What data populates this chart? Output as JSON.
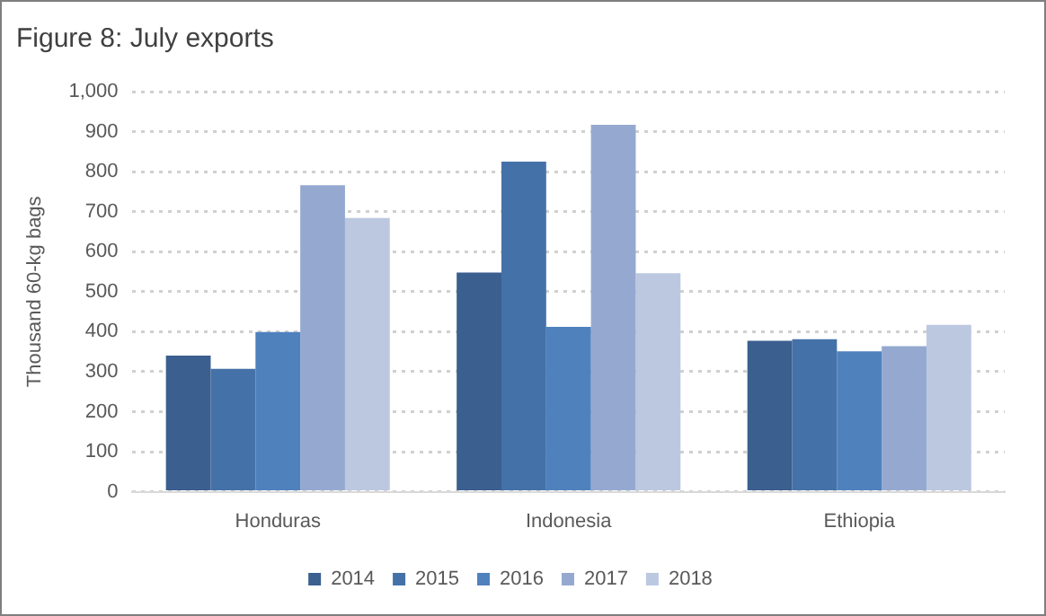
{
  "chart_data": {
    "type": "bar",
    "title": "Figure 8: July exports",
    "ylabel": "Thousand 60-kg bags",
    "categories": [
      "Honduras",
      "Indonesia",
      "Ethiopia"
    ],
    "series": [
      {
        "name": "2014",
        "color": "#3b5f8f",
        "values": [
          340,
          548,
          377
        ]
      },
      {
        "name": "2015",
        "color": "#4472a8",
        "values": [
          307,
          825,
          381
        ]
      },
      {
        "name": "2016",
        "color": "#4f81bd",
        "values": [
          399,
          412,
          351
        ]
      },
      {
        "name": "2017",
        "color": "#95a9d0",
        "values": [
          766,
          917,
          364
        ]
      },
      {
        "name": "2018",
        "color": "#bcc8e0",
        "values": [
          684,
          546,
          417
        ]
      }
    ],
    "ylim": [
      0,
      1000
    ],
    "yticks": [
      0,
      100,
      200,
      300,
      400,
      500,
      600,
      700,
      800,
      900,
      {
        "value": 1000,
        "label": "1,000"
      }
    ],
    "grid": "y",
    "legend": "bottom"
  }
}
